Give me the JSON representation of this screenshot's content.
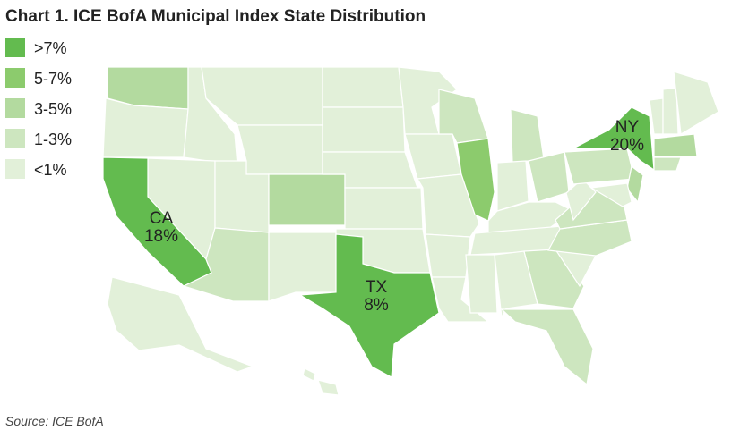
{
  "title": "Chart 1. ICE BofA Municipal Index State Distribution",
  "legend": [
    {
      "label": ">7%",
      "color": "#63bb4f"
    },
    {
      "label": "5-7%",
      "color": "#8ccb6d"
    },
    {
      "label": "3-5%",
      "color": "#b3da9f"
    },
    {
      "label": "1-3%",
      "color": "#cde6bf"
    },
    {
      "label": "<1%",
      "color": "#e2f0d9"
    }
  ],
  "annotations": [
    {
      "state": "CA",
      "value": 18,
      "value_label": "18%"
    },
    {
      "state": "TX",
      "value": 8,
      "value_label": "8%"
    },
    {
      "state": "NY",
      "value": 20,
      "value_label": "20%"
    }
  ],
  "source": "Source: ICE BofA"
}
